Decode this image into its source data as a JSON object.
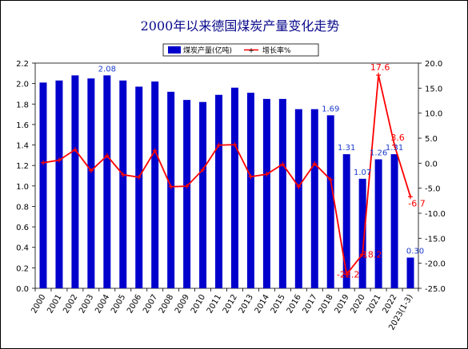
{
  "chart_data": {
    "type": "bar+line",
    "title": "2000年以来德国煤炭产量变化走势",
    "categories": [
      "2000",
      "2001",
      "2002",
      "2003",
      "2004",
      "2005",
      "2006",
      "2007",
      "2008",
      "2009",
      "2010",
      "2011",
      "2012",
      "2013",
      "2014",
      "2015",
      "2016",
      "2017",
      "2018",
      "2019",
      "2020",
      "2021",
      "2022",
      "2023(1-3)"
    ],
    "series": [
      {
        "name": "煤炭产量(亿吨)",
        "type": "bar",
        "axis": "left",
        "color": "#0000cc",
        "values": [
          2.01,
          2.03,
          2.08,
          2.05,
          2.08,
          2.03,
          1.97,
          2.02,
          1.92,
          1.84,
          1.82,
          1.89,
          1.96,
          1.91,
          1.85,
          1.85,
          1.75,
          1.75,
          1.69,
          1.31,
          1.07,
          1.26,
          1.31,
          0.3
        ]
      },
      {
        "name": "增长率%",
        "type": "line",
        "axis": "right",
        "color": "#ff0000",
        "values": [
          0.1,
          0.6,
          2.7,
          -1.5,
          1.5,
          -2.3,
          -2.8,
          2.5,
          -4.7,
          -4.6,
          -1.3,
          3.6,
          3.7,
          -2.7,
          -2.2,
          -0.2,
          -4.7,
          -0.1,
          -3.3,
          -22.2,
          -18.2,
          17.6,
          3.6,
          -6.7
        ]
      }
    ],
    "bar_data_labels": [
      {
        "index": 4,
        "text": "2.08"
      },
      {
        "index": 18,
        "text": "1.69"
      },
      {
        "index": 19,
        "text": "1.31"
      },
      {
        "index": 20,
        "text": "1.07"
      },
      {
        "index": 21,
        "text": "1.26"
      },
      {
        "index": 22,
        "text": "1.31"
      },
      {
        "index": 23,
        "text": "0.30"
      }
    ],
    "line_data_labels": [
      {
        "index": 19,
        "text": "-22.2"
      },
      {
        "index": 20,
        "text": "-18.2"
      },
      {
        "index": 21,
        "text": "17.6"
      },
      {
        "index": 22,
        "text": "3.6"
      },
      {
        "index": 23,
        "text": "-6.7"
      }
    ],
    "y_left": {
      "min": 0,
      "max": 2.2,
      "step": 0.2,
      "ticks": [
        "0.0",
        "0.2",
        "0.4",
        "0.6",
        "0.8",
        "1.0",
        "1.2",
        "1.4",
        "1.6",
        "1.8",
        "2.0",
        "2.2"
      ]
    },
    "y_right": {
      "min": -25,
      "max": 20,
      "step": 5,
      "ticks": [
        "-25.0",
        "-20.0",
        "-15.0",
        "-10.0",
        "-5.0",
        "0.0",
        "5.0",
        "10.0",
        "15.0",
        "20.0"
      ]
    },
    "grid": false,
    "legend_placement": "top-center"
  }
}
